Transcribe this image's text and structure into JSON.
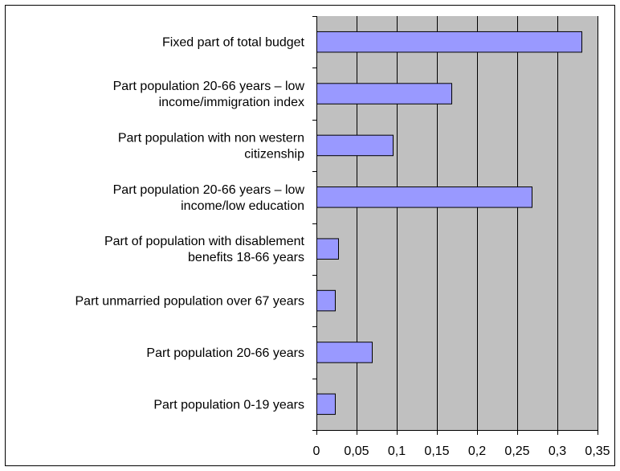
{
  "chart_data": {
    "type": "bar",
    "orientation": "horizontal",
    "categories": [
      [
        "Fixed part of total budget"
      ],
      [
        "Part population 20-66 years – low",
        "income/immigration index"
      ],
      [
        "Part population with non western",
        "citizenship"
      ],
      [
        "Part population 20-66 years – low",
        "income/low education"
      ],
      [
        "Part of population with disablement",
        "benefits 18-66 years"
      ],
      [
        "Part unmarried population over 67 years"
      ],
      [
        "Part population 20-66 years"
      ],
      [
        "Part population 0-19 years"
      ]
    ],
    "values": [
      0.33,
      0.168,
      0.095,
      0.268,
      0.027,
      0.023,
      0.069,
      0.023
    ],
    "x_ticks": [
      "0",
      "0,05",
      "0,1",
      "0,15",
      "0,2",
      "0,25",
      "0,3",
      "0,35"
    ],
    "x_tick_values": [
      0,
      0.05,
      0.1,
      0.15,
      0.2,
      0.25,
      0.3,
      0.35
    ],
    "xlim": [
      0,
      0.35
    ],
    "title": "",
    "xlabel": "",
    "ylabel": "",
    "grid": "vertical",
    "legend": "none",
    "colors": {
      "bar_fill": "#9999ff",
      "bar_stroke": "#000000",
      "plot_background": "#c0c0c0",
      "grid_line": "#000000",
      "axis_line": "#000000",
      "frame": "#000000",
      "page_background": "#ffffff"
    }
  }
}
